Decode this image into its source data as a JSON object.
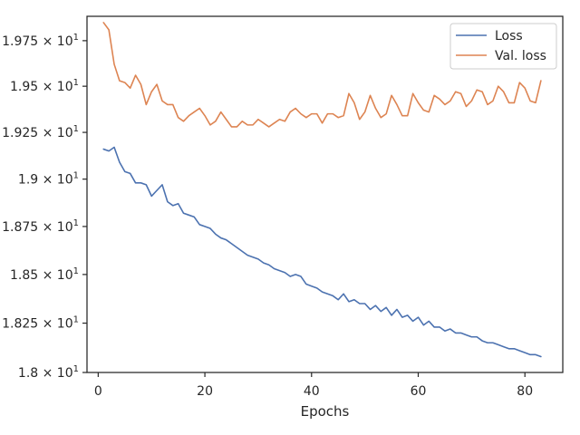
{
  "chart_data": {
    "type": "line",
    "title": "",
    "xlabel": "Epochs",
    "ylabel": "",
    "xlim": [
      -2.1,
      87.1
    ],
    "ylim": [
      18.0,
      19.885
    ],
    "xticks": [
      0,
      20,
      40,
      60,
      80
    ],
    "xtick_labels": [
      "0",
      "20",
      "40",
      "60",
      "80"
    ],
    "yticks": [
      18.0,
      18.25,
      18.5,
      18.75,
      19.0,
      19.25,
      19.5,
      19.75
    ],
    "ytick_labels": [
      {
        "base": "1.8 × 10",
        "exp": "1"
      },
      {
        "base": "1.825 × 10",
        "exp": "1"
      },
      {
        "base": "1.85 × 10",
        "exp": "1"
      },
      {
        "base": "1.875 × 10",
        "exp": "1"
      },
      {
        "base": "1.9 × 10",
        "exp": "1"
      },
      {
        "base": "1.925 × 10",
        "exp": "1"
      },
      {
        "base": "1.95 × 10",
        "exp": "1"
      },
      {
        "base": "1.975 × 10",
        "exp": "1"
      }
    ],
    "y_scale": "log",
    "grid": false,
    "legend_position": "top-right",
    "x": [
      1,
      2,
      3,
      4,
      5,
      6,
      7,
      8,
      9,
      10,
      11,
      12,
      13,
      14,
      15,
      16,
      17,
      18,
      19,
      20,
      21,
      22,
      23,
      24,
      25,
      26,
      27,
      28,
      29,
      30,
      31,
      32,
      33,
      34,
      35,
      36,
      37,
      38,
      39,
      40,
      41,
      42,
      43,
      44,
      45,
      46,
      47,
      48,
      49,
      50,
      51,
      52,
      53,
      54,
      55,
      56,
      57,
      58,
      59,
      60,
      61,
      62,
      63,
      64,
      65,
      66,
      67,
      68,
      69,
      70,
      71,
      72,
      73,
      74,
      75,
      76,
      77,
      78,
      79,
      80,
      81,
      82,
      83
    ],
    "series": [
      {
        "name": "Loss",
        "color": "#4c72b0",
        "values": [
          19.16,
          19.15,
          19.17,
          19.09,
          19.04,
          19.03,
          18.98,
          18.98,
          18.97,
          18.91,
          18.94,
          18.97,
          18.88,
          18.86,
          18.87,
          18.82,
          18.81,
          18.8,
          18.76,
          18.75,
          18.74,
          18.71,
          18.69,
          18.68,
          18.66,
          18.64,
          18.62,
          18.6,
          18.59,
          18.58,
          18.56,
          18.55,
          18.53,
          18.52,
          18.51,
          18.49,
          18.5,
          18.49,
          18.45,
          18.44,
          18.43,
          18.41,
          18.4,
          18.39,
          18.37,
          18.4,
          18.36,
          18.37,
          18.35,
          18.35,
          18.32,
          18.34,
          18.31,
          18.33,
          18.29,
          18.32,
          18.28,
          18.29,
          18.26,
          18.28,
          18.24,
          18.26,
          18.23,
          18.23,
          18.21,
          18.22,
          18.2,
          18.2,
          18.19,
          18.18,
          18.18,
          18.16,
          18.15,
          18.15,
          18.14,
          18.13,
          18.12,
          18.12,
          18.11,
          18.1,
          18.09,
          18.09,
          18.08
        ]
      },
      {
        "name": "Val. loss",
        "color": "#dd8452",
        "values": [
          19.85,
          19.81,
          19.62,
          19.53,
          19.52,
          19.49,
          19.56,
          19.51,
          19.4,
          19.47,
          19.51,
          19.42,
          19.4,
          19.4,
          19.33,
          19.31,
          19.34,
          19.36,
          19.38,
          19.34,
          19.29,
          19.31,
          19.36,
          19.32,
          19.28,
          19.28,
          19.31,
          19.29,
          19.29,
          19.32,
          19.3,
          19.28,
          19.3,
          19.32,
          19.31,
          19.36,
          19.38,
          19.35,
          19.33,
          19.35,
          19.35,
          19.3,
          19.35,
          19.35,
          19.33,
          19.34,
          19.46,
          19.41,
          19.32,
          19.36,
          19.45,
          19.38,
          19.33,
          19.35,
          19.45,
          19.4,
          19.34,
          19.34,
          19.46,
          19.41,
          19.37,
          19.36,
          19.45,
          19.43,
          19.4,
          19.42,
          19.47,
          19.46,
          19.39,
          19.42,
          19.48,
          19.47,
          19.4,
          19.42,
          19.5,
          19.47,
          19.41,
          19.41,
          19.52,
          19.49,
          19.42,
          19.41,
          19.53
        ]
      }
    ]
  }
}
